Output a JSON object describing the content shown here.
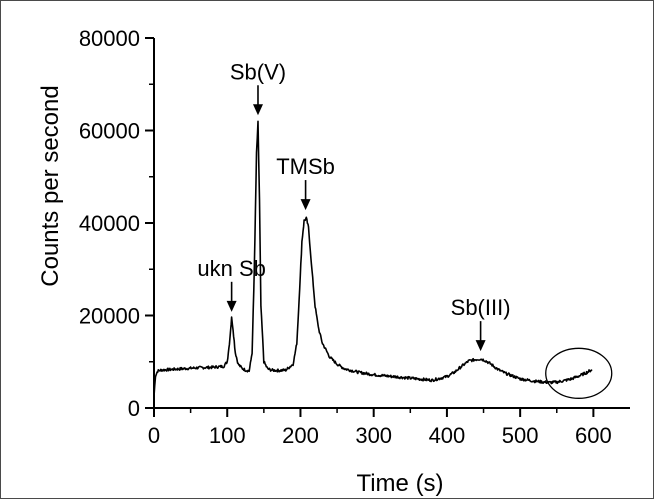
{
  "chart_data": {
    "type": "line",
    "title": "",
    "xlabel": "Time (s)",
    "ylabel": "Counts per second",
    "xlim": [
      0,
      650
    ],
    "ylim": [
      0,
      80000
    ],
    "xticks": [
      "0",
      "100",
      "200",
      "300",
      "400",
      "500",
      "600"
    ],
    "xtick_values": [
      0,
      100,
      200,
      300,
      400,
      500,
      600
    ],
    "yticks": [
      "0",
      "20000",
      "40000",
      "60000",
      "80000"
    ],
    "ytick_values": [
      0,
      20000,
      40000,
      60000,
      80000
    ],
    "grid": false,
    "legend": "none",
    "line_color": "#000000",
    "series": [
      {
        "x": [
          0,
          2,
          5,
          10,
          20,
          40,
          60,
          80,
          95,
          100,
          103,
          106,
          108,
          111,
          115,
          120,
          125,
          130,
          134,
          137,
          140,
          142,
          144,
          146,
          150,
          155,
          160,
          170,
          180,
          190,
          195,
          199,
          202,
          205,
          208,
          211,
          215,
          220,
          225,
          230,
          240,
          250,
          260,
          280,
          300,
          320,
          340,
          360,
          380,
          400,
          410,
          420,
          430,
          440,
          446,
          452,
          460,
          470,
          480,
          490,
          500,
          520,
          540,
          550,
          560,
          570,
          580,
          590,
          598
        ],
        "y": [
          2500,
          7000,
          8000,
          8200,
          8300,
          8500,
          8700,
          8800,
          9000,
          10000,
          14000,
          19500,
          17000,
          12000,
          9500,
          8600,
          8200,
          8000,
          12000,
          30000,
          55000,
          62000,
          45000,
          22000,
          10000,
          8500,
          8200,
          8100,
          8200,
          9500,
          14000,
          26000,
          36000,
          40500,
          41000,
          39000,
          31000,
          22000,
          17000,
          14000,
          11000,
          9500,
          8500,
          7700,
          7200,
          6900,
          6600,
          6300,
          6000,
          6800,
          7700,
          9000,
          10200,
          10500,
          10600,
          10300,
          9500,
          8300,
          7500,
          6900,
          6300,
          5800,
          5500,
          5600,
          5900,
          6300,
          6900,
          7600,
          8300
        ]
      }
    ],
    "annotations": [
      {
        "text": "ukn Sb",
        "x": 106,
        "y": 19500
      },
      {
        "text": "Sb(V)",
        "x": 142,
        "y": 62000
      },
      {
        "text": "TMSb",
        "x": 207,
        "y": 41500
      },
      {
        "text": "Sb(III)",
        "x": 446,
        "y": 11000
      }
    ],
    "highlight": {
      "shape": "ellipse",
      "x": 580,
      "y": 7500
    }
  }
}
